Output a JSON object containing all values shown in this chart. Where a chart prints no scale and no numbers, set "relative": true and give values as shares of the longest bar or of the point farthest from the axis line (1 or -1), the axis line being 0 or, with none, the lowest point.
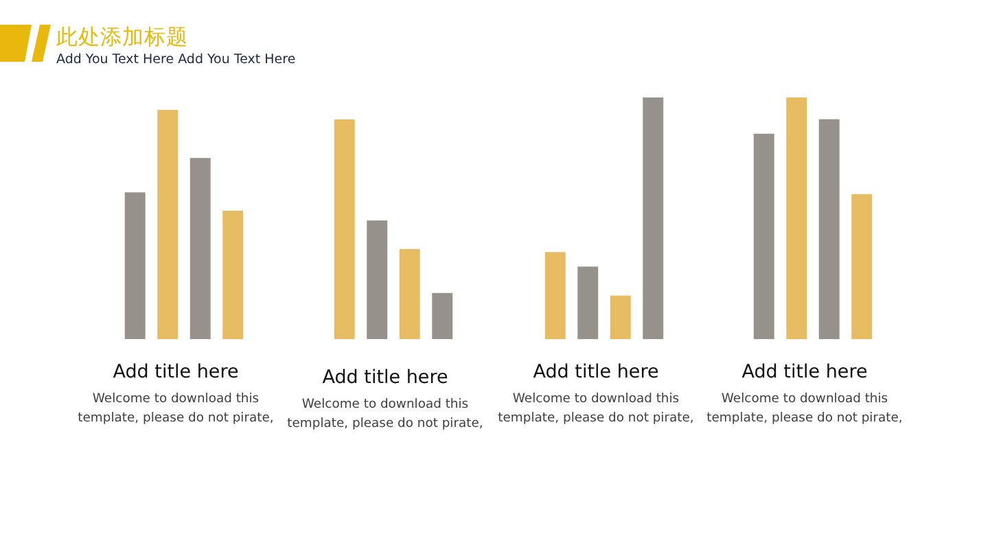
{
  "chart_data": [
    {
      "type": "other",
      "title": "此处添加标题",
      "subtitle": "Add You Text Here Add You Text Here"
    },
    {
      "type": "bar",
      "title": "Add title here",
      "subtitle": "Welcome to download this template, please do not pirate,",
      "categories": [
        null,
        null,
        null,
        null
      ],
      "values": [
        0.64,
        1,
        0.79,
        0.56
      ],
      "colors": [
        "#96918a",
        "#e6bb62",
        "#96918a",
        "#e6bb62"
      ],
      "relative": true
    },
    {
      "type": "bar",
      "title": "Add title here",
      "subtitle": "Welcome to download this template, please do not pirate,",
      "categories": [
        null,
        null,
        null,
        null
      ],
      "values": [
        1,
        0.54,
        0.41,
        0.21
      ],
      "colors": [
        "#e6bb62",
        "#96918a",
        "#e6bb62",
        "#96918a"
      ],
      "relative": true
    },
    {
      "type": "bar",
      "title": "Add title here",
      "subtitle": "Welcome to download this template, please do not pirate,",
      "categories": [
        null,
        null,
        null,
        null
      ],
      "values": [
        0.36,
        0.3,
        0.18,
        1
      ],
      "colors": [
        "#e6bb62",
        "#96918a",
        "#e6bb62",
        "#96918a"
      ],
      "relative": true
    },
    {
      "type": "bar",
      "title": "Add title here",
      "subtitle": "Welcome to download this template, please do not pirate,",
      "categories": [
        null,
        null,
        null,
        null
      ],
      "values": [
        0.85,
        1,
        0.91,
        0.6
      ],
      "colors": [
        "#96918a",
        "#e6bb62",
        "#96918a",
        "#e6bb62"
      ],
      "relative": true
    }
  ]
}
